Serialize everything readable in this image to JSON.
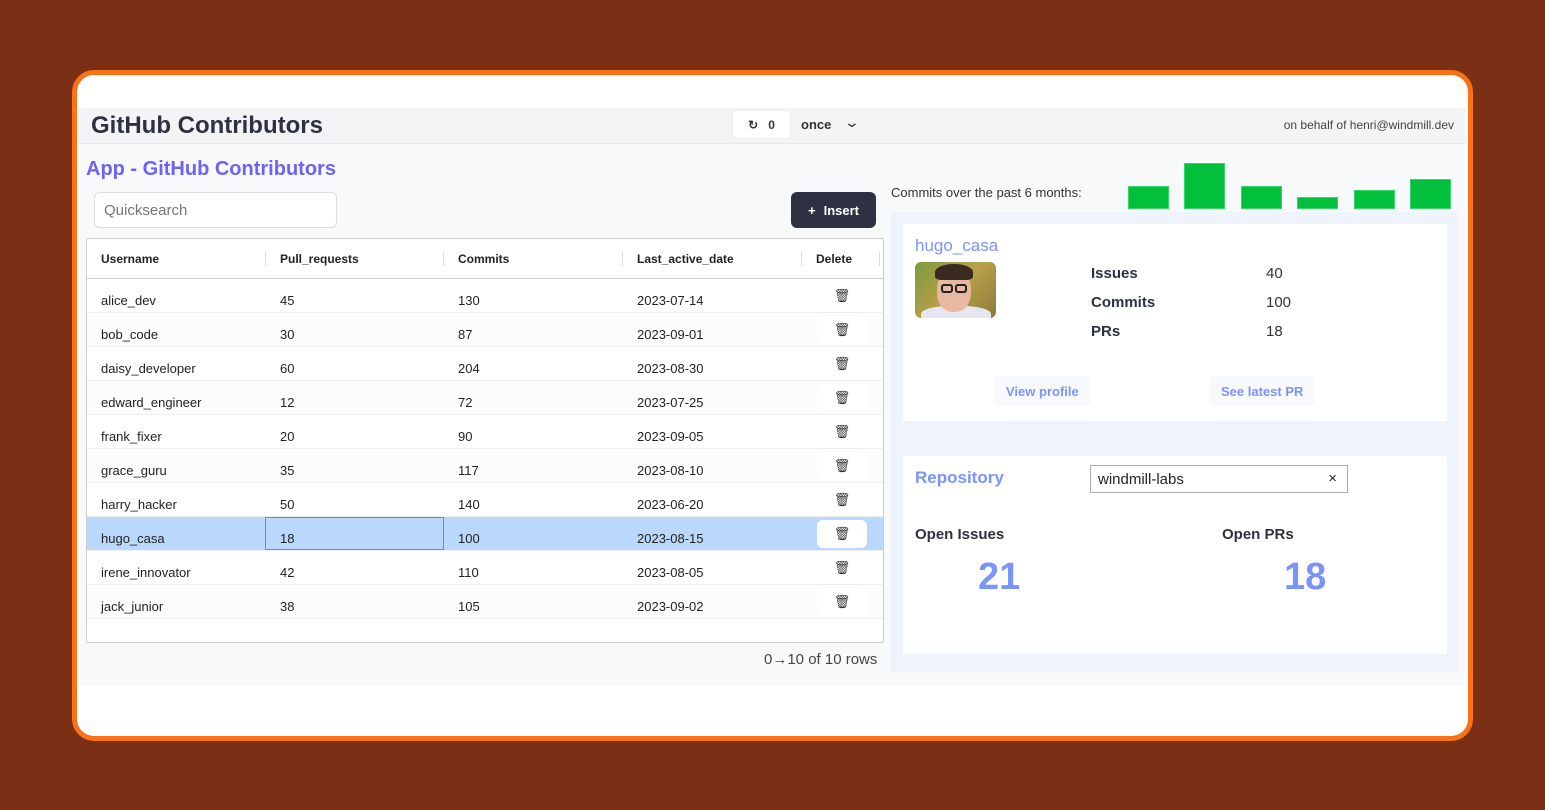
{
  "header": {
    "title": "GitHub Contributors",
    "refresh_count": "0",
    "refresh_mode": "once",
    "on_behalf": "on behalf of henri@windmill.dev"
  },
  "app_title": "App - GitHub Contributors",
  "search": {
    "placeholder": "Quicksearch",
    "value": ""
  },
  "insert_label": "Insert",
  "table": {
    "columns": [
      "Username",
      "Pull_requests",
      "Commits",
      "Last_active_date",
      "Delete"
    ],
    "rows": [
      [
        "alice_dev",
        "45",
        "130",
        "2023-07-14"
      ],
      [
        "bob_code",
        "30",
        "87",
        "2023-09-01"
      ],
      [
        "daisy_developer",
        "60",
        "204",
        "2023-08-30"
      ],
      [
        "edward_engineer",
        "12",
        "72",
        "2023-07-25"
      ],
      [
        "frank_fixer",
        "20",
        "90",
        "2023-09-05"
      ],
      [
        "grace_guru",
        "35",
        "117",
        "2023-08-10"
      ],
      [
        "harry_hacker",
        "50",
        "140",
        "2023-06-20"
      ],
      [
        "hugo_casa",
        "18",
        "100",
        "2023-08-15"
      ],
      [
        "irene_innovator",
        "42",
        "110",
        "2023-08-05"
      ],
      [
        "jack_junior",
        "38",
        "105",
        "2023-09-02"
      ]
    ],
    "selected_row": "hugo_casa",
    "pager": "0→10 of 10 rows"
  },
  "chart_data": {
    "type": "bar",
    "title": "Commits over the past 6 months:",
    "values": [
      23,
      46,
      23,
      12,
      19,
      30
    ],
    "color": "#03c03c",
    "axes": "none"
  },
  "user_card": {
    "username": "hugo_casa",
    "stats": [
      {
        "label": "Issues",
        "value": "40"
      },
      {
        "label": "Commits",
        "value": "100"
      },
      {
        "label": "PRs",
        "value": "18"
      }
    ],
    "view_profile": "View profile",
    "latest_pr": "See latest PR"
  },
  "repo_card": {
    "label": "Repository",
    "value": "windmill-labs",
    "clear": "×",
    "open_issues_label": "Open Issues",
    "open_issues": "21",
    "open_prs_label": "Open PRs",
    "open_prs": "18"
  },
  "colors": {
    "accent": "#7b94f7",
    "title_accent": "#6d63f5",
    "frame": "#f97316",
    "bar": "#03c03c",
    "selected": "#b9d8fb"
  }
}
